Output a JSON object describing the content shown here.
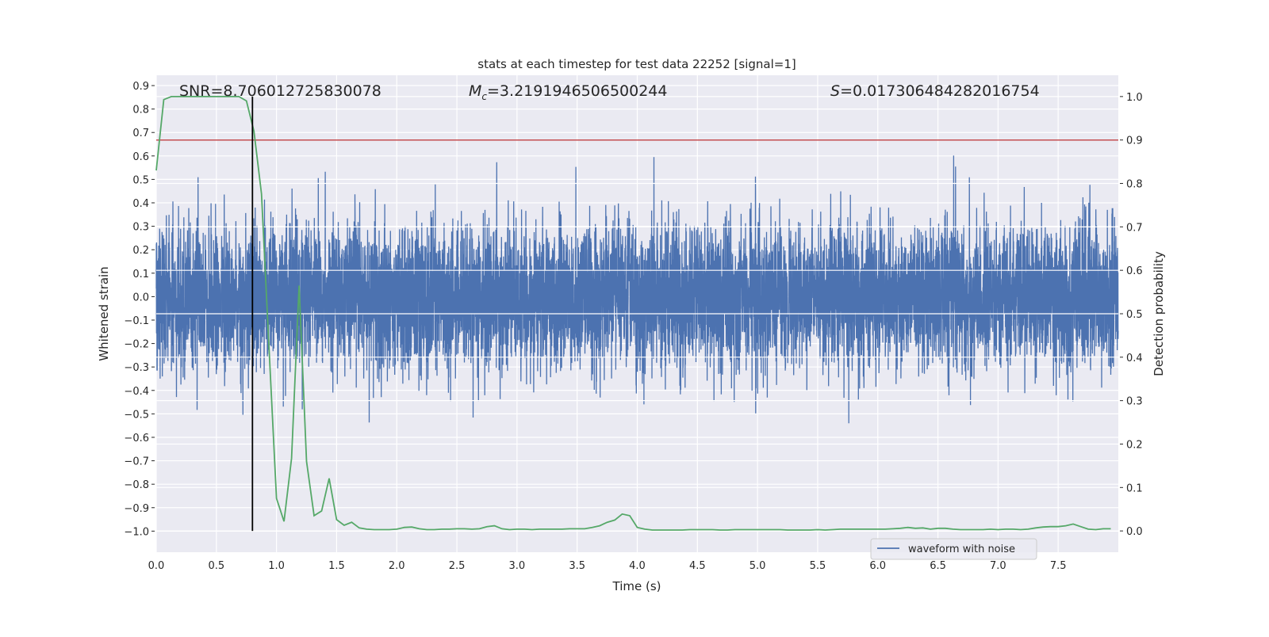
{
  "chart_data": {
    "type": "line",
    "title": "stats at each timestep for test data 22252 [signal=1]",
    "xlabel": "Time (s)",
    "ylabel_left": "Whitened strain",
    "ylabel_right": "Detection probability",
    "xlim": [
      0,
      8.0
    ],
    "ylim_left": [
      -1.09,
      0.944
    ],
    "ylim_right": [
      -0.049,
      1.049
    ],
    "grid": true,
    "legend_placement": "lower-right",
    "x_ticks": [
      "0.0",
      "0.5",
      "1.0",
      "1.5",
      "2.0",
      "2.5",
      "3.0",
      "3.5",
      "4.0",
      "4.5",
      "5.0",
      "5.5",
      "6.0",
      "6.5",
      "7.0",
      "7.5"
    ],
    "y_left_ticks": [
      "0.9",
      "0.8",
      "0.7",
      "0.6",
      "0.5",
      "0.4",
      "0.3",
      "0.2",
      "0.1",
      "0.0",
      "−0.1",
      "−0.2",
      "−0.3",
      "−0.4",
      "−0.5",
      "−0.6",
      "−0.7",
      "−0.8",
      "−0.9",
      "−1.0"
    ],
    "y_right_ticks": [
      "1.0",
      "0.9",
      "0.8",
      "0.7",
      "0.6",
      "0.5",
      "0.4",
      "0.3",
      "0.2",
      "0.1",
      "0.0"
    ],
    "annotations": {
      "snr": "SNR=8.706012725830078",
      "mc_symbol": "M",
      "mc_sub": "c",
      "mc_value": "=3.2191946506500244",
      "s_symbol": "S",
      "s_value": "=0.017306484282016754"
    },
    "series": [
      {
        "name": "waveform with noise",
        "axis": "left",
        "color": "#4C72B0",
        "x_range": [
          0,
          8.0
        ],
        "amplitude_envelope": [
          -1.0,
          0.85
        ]
      },
      {
        "axis": "right",
        "color": "#55A868",
        "x_step": 0.0625,
        "values": [
          0.83,
          0.993,
          1.0,
          1.0,
          1.0,
          1.0,
          1.0,
          1.0,
          1.0,
          1.0,
          1.0,
          1.0,
          0.99,
          0.92,
          0.776,
          0.425,
          0.075,
          0.022,
          0.167,
          0.565,
          0.16,
          0.035,
          0.046,
          0.121,
          0.026,
          0.013,
          0.02,
          0.007,
          0.004,
          0.003,
          0.003,
          0.003,
          0.004,
          0.008,
          0.009,
          0.005,
          0.003,
          0.003,
          0.004,
          0.004,
          0.005,
          0.005,
          0.004,
          0.005,
          0.01,
          0.012,
          0.005,
          0.003,
          0.004,
          0.004,
          0.003,
          0.004,
          0.004,
          0.004,
          0.004,
          0.005,
          0.005,
          0.005,
          0.008,
          0.012,
          0.02,
          0.025,
          0.039,
          0.035,
          0.008,
          0.004,
          0.002,
          0.002,
          0.002,
          0.002,
          0.002,
          0.003,
          0.003,
          0.003,
          0.003,
          0.002,
          0.002,
          0.003,
          0.003,
          0.003,
          0.003,
          0.003,
          0.003,
          0.003,
          0.002,
          0.002,
          0.002,
          0.002,
          0.003,
          0.002,
          0.003,
          0.004,
          0.004,
          0.004,
          0.004,
          0.004,
          0.004,
          0.004,
          0.005,
          0.006,
          0.008,
          0.006,
          0.007,
          0.004,
          0.006,
          0.006,
          0.004,
          0.003,
          0.003,
          0.003,
          0.003,
          0.004,
          0.003,
          0.004,
          0.004,
          0.003,
          0.004,
          0.007,
          0.009,
          0.01,
          0.01,
          0.012,
          0.016,
          0.01,
          0.004,
          0.003,
          0.005,
          0.005
        ]
      }
    ],
    "threshold": {
      "axis": "right",
      "value": 0.9,
      "color": "#C44E52"
    },
    "vline": {
      "x": 0.8,
      "color": "#000000"
    },
    "background": "#EAEAF2"
  }
}
